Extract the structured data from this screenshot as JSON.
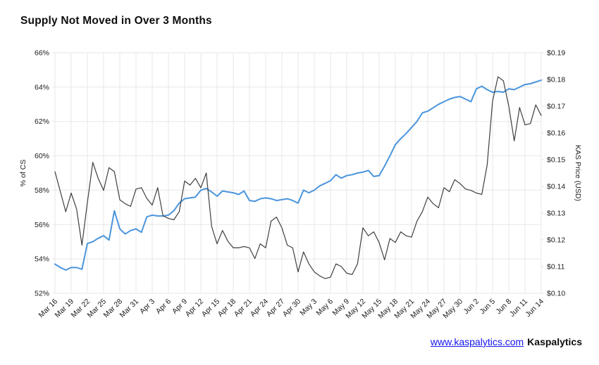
{
  "page": {
    "background": "#ffffff"
  },
  "header": {
    "title": "Supply Not Moved in Over 3 Months"
  },
  "footer": {
    "link_text": "www.kaspalytics.com",
    "brand": "Kaspalytics",
    "link_color": "#1414ee"
  },
  "chart_data": {
    "type": "line",
    "title": "Supply Not Moved in Over 3 Months",
    "grid": true,
    "grid_color": "#e7e7e7",
    "legend": "none",
    "x_tick_every": 3,
    "x": [
      "Mar 16",
      "Mar 17",
      "Mar 18",
      "Mar 19",
      "Mar 20",
      "Mar 21",
      "Mar 22",
      "Mar 23",
      "Mar 24",
      "Mar 25",
      "Mar 26",
      "Mar 27",
      "Mar 28",
      "Mar 29",
      "Mar 30",
      "Mar 31",
      "Apr 1",
      "Apr 2",
      "Apr 3",
      "Apr 4",
      "Apr 5",
      "Apr 6",
      "Apr 7",
      "Apr 8",
      "Apr 9",
      "Apr 10",
      "Apr 11",
      "Apr 12",
      "Apr 13",
      "Apr 14",
      "Apr 15",
      "Apr 16",
      "Apr 17",
      "Apr 18",
      "Apr 19",
      "Apr 20",
      "Apr 21",
      "Apr 22",
      "Apr 23",
      "Apr 24",
      "Apr 25",
      "Apr 26",
      "Apr 27",
      "Apr 28",
      "Apr 29",
      "Apr 30",
      "May 1",
      "May 2",
      "May 3",
      "May 4",
      "May 5",
      "May 6",
      "May 7",
      "May 8",
      "May 9",
      "May 10",
      "May 11",
      "May 12",
      "May 13",
      "May 14",
      "May 15",
      "May 16",
      "May 17",
      "May 18",
      "May 19",
      "May 20",
      "May 21",
      "May 22",
      "May 23",
      "May 24",
      "May 25",
      "May 26",
      "May 27",
      "May 28",
      "May 29",
      "May 30",
      "May 31",
      "Jun 1",
      "Jun 2",
      "Jun 3",
      "Jun 4",
      "Jun 5",
      "Jun 6",
      "Jun 7",
      "Jun 8",
      "Jun 9",
      "Jun 10",
      "Jun 11",
      "Jun 12",
      "Jun 13",
      "Jun 14"
    ],
    "left_axis": {
      "label": "% of CS",
      "min": 52,
      "max": 66,
      "tick_step": 2,
      "tick_suffix": "%"
    },
    "right_axis": {
      "label": "KAS Price (USD)",
      "min": 0.1,
      "max": 0.19,
      "tick_step": 0.01,
      "tick_prefix": "$"
    },
    "series": [
      {
        "id": "supply-line",
        "name": "% of CS",
        "axis": "left",
        "color": "#4a95dc",
        "stroke_width": 2,
        "values": [
          53.7,
          53.5,
          53.35,
          53.5,
          53.5,
          53.4,
          54.9,
          55.0,
          55.2,
          55.35,
          55.1,
          56.8,
          55.75,
          55.45,
          55.65,
          55.75,
          55.55,
          56.45,
          56.55,
          56.5,
          56.5,
          56.55,
          56.8,
          57.25,
          57.5,
          57.55,
          57.6,
          58.0,
          58.1,
          57.9,
          57.65,
          57.95,
          57.9,
          57.85,
          57.75,
          57.95,
          57.4,
          57.35,
          57.5,
          57.55,
          57.5,
          57.4,
          57.45,
          57.5,
          57.4,
          57.25,
          58.0,
          57.85,
          58.0,
          58.25,
          58.4,
          58.55,
          58.9,
          58.7,
          58.85,
          58.9,
          59.0,
          59.05,
          59.15,
          58.8,
          58.85,
          59.4,
          60.0,
          60.65,
          61.0,
          61.3,
          61.65,
          62.0,
          62.5,
          62.6,
          62.8,
          63.0,
          63.15,
          63.3,
          63.4,
          63.45,
          63.3,
          63.15,
          63.9,
          64.05,
          63.85,
          63.7,
          63.75,
          63.7,
          63.9,
          63.85,
          64.0,
          64.15,
          64.2,
          64.3,
          64.4
        ]
      },
      {
        "id": "price-line",
        "name": "KAS Price (USD)",
        "axis": "right",
        "color": "#3f3f3f",
        "stroke_width": 1.2,
        "values": [
          0.1455,
          0.138,
          0.1305,
          0.1375,
          0.1315,
          0.118,
          0.134,
          0.149,
          0.143,
          0.1385,
          0.147,
          0.1455,
          0.135,
          0.1335,
          0.1325,
          0.139,
          0.1395,
          0.1355,
          0.133,
          0.1395,
          0.129,
          0.128,
          0.1275,
          0.1305,
          0.142,
          0.1405,
          0.143,
          0.1395,
          0.145,
          0.125,
          0.1185,
          0.1235,
          0.1195,
          0.117,
          0.117,
          0.1175,
          0.117,
          0.113,
          0.1185,
          0.117,
          0.127,
          0.1285,
          0.1245,
          0.118,
          0.117,
          0.108,
          0.1155,
          0.111,
          0.108,
          0.1065,
          0.1055,
          0.106,
          0.111,
          0.11,
          0.1075,
          0.107,
          0.111,
          0.1245,
          0.1215,
          0.123,
          0.119,
          0.1125,
          0.1205,
          0.119,
          0.123,
          0.1215,
          0.121,
          0.127,
          0.1305,
          0.136,
          0.1335,
          0.132,
          0.1395,
          0.138,
          0.1425,
          0.141,
          0.139,
          0.1385,
          0.1375,
          0.137,
          0.148,
          0.172,
          0.181,
          0.1795,
          0.17,
          0.157,
          0.1695,
          0.163,
          0.1635,
          0.1705,
          0.1665
        ]
      }
    ]
  }
}
